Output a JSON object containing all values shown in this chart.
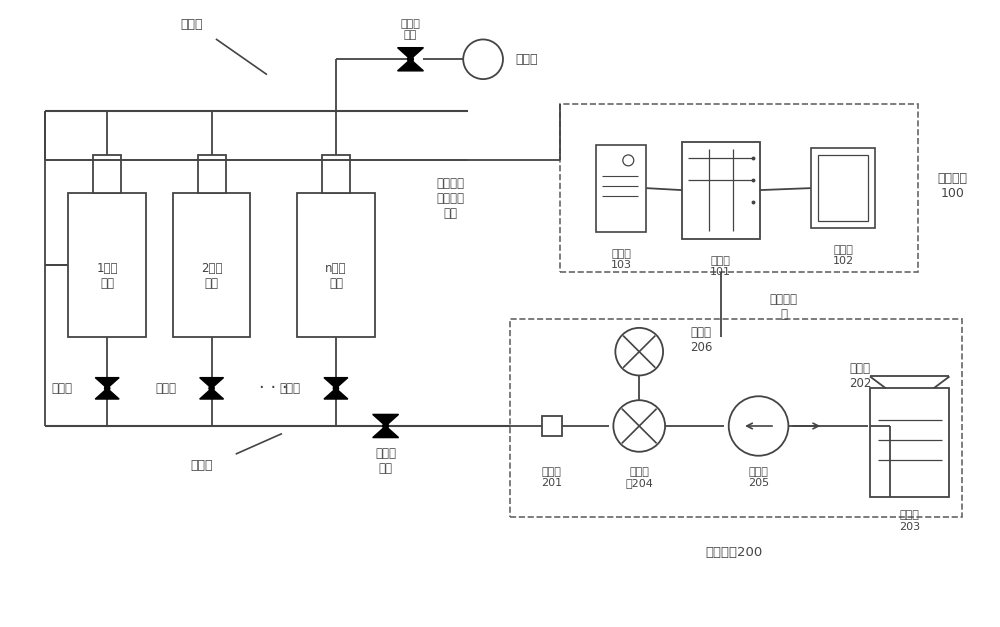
{
  "bg_color": "#ffffff",
  "lc": "#444444",
  "dc": "#666666",
  "fig_width": 10.0,
  "fig_height": 6.27,
  "labels": {
    "exhaust_pipe": "排气管",
    "exhaust_valve": "排气管\n阀门",
    "vent": "通风塞",
    "data_line_level": "数据传输\n线（水准\n盒）",
    "control_device": "控制装置\n100",
    "collector103": "采集器\n103",
    "collector101": "采集器\n101",
    "collector102": "采集器\n102",
    "data_line": "数据传输\n线",
    "level_box1": "1号水\n准盒",
    "level_box2": "2号水\n准盒",
    "level_boxn": "n号水\n准盒",
    "inlet_valve": "入水阀",
    "collector_device": "集水器",
    "collector_valve": "集水器\n阀门",
    "connector": "连接头\n201",
    "micro_flow": "微流量\n计204",
    "micro_pump": "微型泵\n205",
    "liquid_tube": "取液管\n202",
    "liquid_tank": "集液桶\n203",
    "pressure_gauge": "压力计\n206",
    "exec_unit": "执行单元200"
  }
}
